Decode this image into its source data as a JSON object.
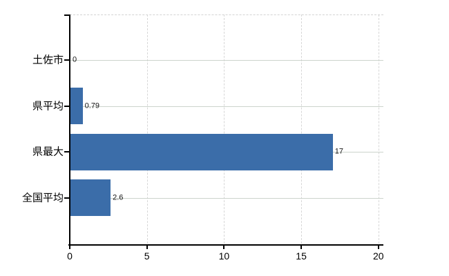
{
  "chart_data": {
    "type": "bar",
    "orientation": "horizontal",
    "title": "",
    "xlabel": "",
    "ylabel": "",
    "categories": [
      "土佐市",
      "県平均",
      "県最大",
      "全国平均"
    ],
    "values": [
      0,
      0.79,
      17,
      2.6
    ],
    "value_labels": [
      "0",
      "0.79",
      "17",
      "2.6"
    ],
    "x_ticks": [
      0,
      5,
      10,
      15,
      20
    ],
    "x_tick_labels": [
      "0",
      "5",
      "10",
      "15",
      "20"
    ],
    "xlim": [
      0,
      20
    ],
    "grid": true,
    "legend": false,
    "colors": {
      "bar": "#3b6da9",
      "axis": "#000000",
      "hgrid": "#ccd3cc",
      "vgrid": "#d6d6d6",
      "background": "#ffffff",
      "value_label_text": "#141414",
      "tick_label_text": "#000000"
    }
  }
}
